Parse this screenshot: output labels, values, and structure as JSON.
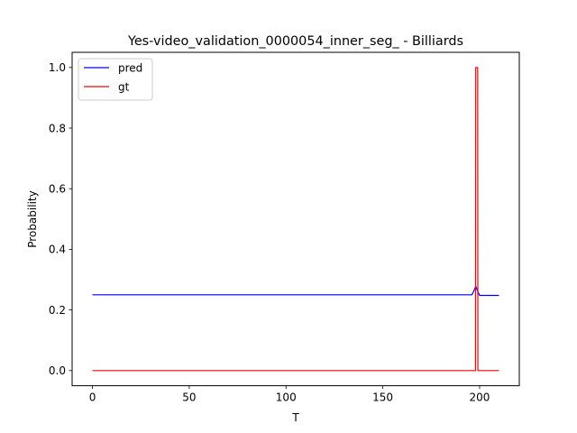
{
  "chart_data": {
    "type": "line",
    "title": "Yes-video_validation_0000054_inner_seg_ - Billiards",
    "xlabel": "T",
    "ylabel": "Probability",
    "xlim": [
      -10.5,
      220.5
    ],
    "ylim": [
      -0.05,
      1.05
    ],
    "xticks": [
      0,
      50,
      100,
      150,
      200
    ],
    "yticks": [
      0.0,
      0.2,
      0.4,
      0.6,
      0.8,
      1.0
    ],
    "xtick_labels": [
      "0",
      "50",
      "100",
      "150",
      "200"
    ],
    "ytick_labels": [
      "0.0",
      "0.2",
      "0.4",
      "0.6",
      "0.8",
      "1.0"
    ],
    "grid": false,
    "legend_position": "top-left",
    "series": [
      {
        "name": "pred",
        "color": "#0000ff",
        "x": [
          0,
          196,
          197,
          198,
          199,
          200,
          210
        ],
        "y": [
          0.25,
          0.25,
          0.262,
          0.278,
          0.262,
          0.248,
          0.248
        ]
      },
      {
        "name": "gt",
        "color": "#ff0000",
        "x": [
          0,
          197.9,
          198,
          199,
          199.1,
          210
        ],
        "y": [
          0.0,
          0.0,
          1.0,
          1.0,
          0.0,
          0.0
        ]
      }
    ]
  }
}
